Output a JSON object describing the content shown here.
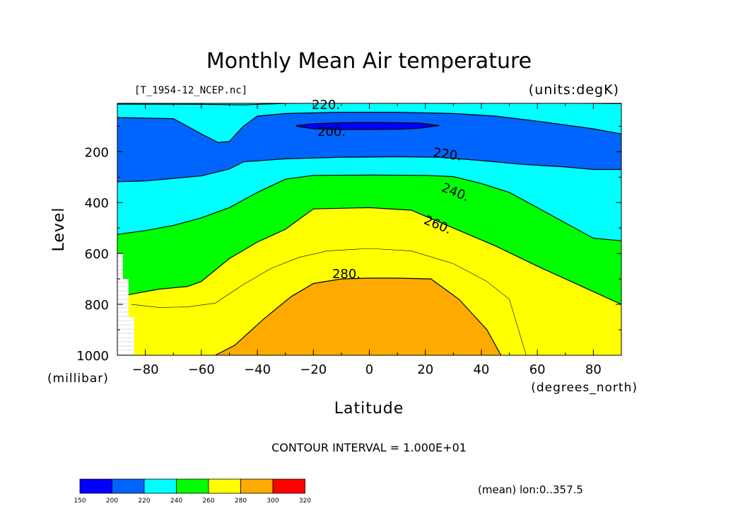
{
  "chart_data": {
    "type": "contour",
    "title": "Monthly Mean Air temperature",
    "file_label": "[T_1954-12_NCEP.nc]",
    "units_label": "(units:degK)",
    "xlabel": "Latitude",
    "x_units": "(degrees_north)",
    "ylabel": "Level",
    "y_units": "(millibar)",
    "contour_interval_label": "CONTOUR INTERVAL = 1.000E+01",
    "averaging_note": "(mean) lon:0..357.5",
    "xlim": [
      -90,
      90
    ],
    "ylim": [
      1000,
      10
    ],
    "x_ticks": [
      -80,
      -60,
      -40,
      -20,
      0,
      20,
      40,
      60,
      80
    ],
    "x_tick_labels": [
      "−80",
      "−60",
      "−40",
      "−20",
      "0",
      "20",
      "40",
      "60",
      "80"
    ],
    "y_ticks": [
      200,
      400,
      600,
      800,
      1000
    ],
    "y_tick_labels": [
      "200",
      "400",
      "600",
      "800",
      "1000"
    ],
    "contour_labels": [
      "220.",
      "200.",
      "220.",
      "240.",
      "260.",
      "280."
    ],
    "colorbar": {
      "levels": [
        150,
        200,
        220,
        240,
        260,
        280,
        300,
        320
      ],
      "level_labels": [
        "150",
        "200",
        "220",
        "240",
        "260",
        "280",
        "300",
        "320"
      ],
      "colors": [
        "#0000ff",
        "#0064ff",
        "#00ffff",
        "#00ff00",
        "#ffff00",
        "#ffaa00",
        "#ff0000"
      ]
    },
    "boundaries": [
      {
        "value": 200,
        "side": "closed",
        "points": [
          [
            -26,
            97
          ],
          [
            -20,
            90
          ],
          [
            -10,
            86
          ],
          [
            0,
            85
          ],
          [
            10,
            86
          ],
          [
            18,
            88
          ],
          [
            25,
            97
          ],
          [
            18,
            108
          ],
          [
            10,
            112
          ],
          [
            0,
            113
          ],
          [
            -10,
            113
          ],
          [
            -20,
            110
          ],
          [
            -26,
            100
          ]
        ]
      },
      {
        "value": 220,
        "side": "above",
        "points": [
          [
            -90,
            13
          ],
          [
            -60,
            14
          ],
          [
            -45,
            16
          ],
          [
            -30,
            10
          ],
          [
            -10,
            9
          ],
          [
            10,
            9
          ],
          [
            30,
            10
          ],
          [
            40,
            9
          ],
          [
            60,
            9
          ],
          [
            80,
            10
          ],
          [
            90,
            11
          ]
        ]
      },
      {
        "value": 220,
        "side": "above",
        "points": [
          [
            -90,
            66
          ],
          [
            -70,
            70
          ],
          [
            -65,
            100
          ],
          [
            -60,
            130
          ],
          [
            -54,
            164
          ],
          [
            -50,
            160
          ],
          [
            -45,
            100
          ],
          [
            -40,
            60
          ],
          [
            -30,
            50
          ],
          [
            -10,
            45
          ],
          [
            10,
            45
          ],
          [
            30,
            50
          ],
          [
            45,
            60
          ],
          [
            60,
            80
          ],
          [
            80,
            110
          ],
          [
            90,
            130
          ]
        ]
      },
      {
        "value": 220,
        "side": "below",
        "points": [
          [
            -90,
            318
          ],
          [
            -80,
            315
          ],
          [
            -70,
            305
          ],
          [
            -60,
            295
          ],
          [
            -50,
            268
          ],
          [
            -45,
            240
          ],
          [
            -30,
            228
          ],
          [
            -10,
            222
          ],
          [
            10,
            220
          ],
          [
            25,
            222
          ],
          [
            40,
            235
          ],
          [
            55,
            250
          ],
          [
            70,
            260
          ],
          [
            80,
            270
          ],
          [
            90,
            270
          ]
        ]
      },
      {
        "value": 240,
        "side": "below",
        "points": [
          [
            -90,
            525
          ],
          [
            -80,
            510
          ],
          [
            -70,
            490
          ],
          [
            -60,
            460
          ],
          [
            -50,
            420
          ],
          [
            -40,
            360
          ],
          [
            -30,
            308
          ],
          [
            -20,
            293
          ],
          [
            0,
            292
          ],
          [
            20,
            293
          ],
          [
            30,
            298
          ],
          [
            40,
            325
          ],
          [
            50,
            360
          ],
          [
            60,
            420
          ],
          [
            70,
            480
          ],
          [
            80,
            540
          ],
          [
            90,
            550
          ]
        ]
      },
      {
        "value": 260,
        "side": "below",
        "points": [
          [
            -90,
            768
          ],
          [
            -85,
            760
          ],
          [
            -75,
            740
          ],
          [
            -65,
            730
          ],
          [
            -60,
            710
          ],
          [
            -55,
            665
          ],
          [
            -50,
            620
          ],
          [
            -40,
            555
          ],
          [
            -30,
            505
          ],
          [
            -20,
            425
          ],
          [
            0,
            420
          ],
          [
            15,
            430
          ],
          [
            30,
            500
          ],
          [
            45,
            570
          ],
          [
            60,
            650
          ],
          [
            70,
            700
          ],
          [
            80,
            750
          ],
          [
            90,
            800
          ]
        ]
      },
      {
        "value": 270,
        "side": "below",
        "points": [
          [
            -85,
            800
          ],
          [
            -75,
            812
          ],
          [
            -65,
            810
          ],
          [
            -55,
            795
          ],
          [
            -45,
            722
          ],
          [
            -35,
            658
          ],
          [
            -25,
            615
          ],
          [
            -15,
            590
          ],
          [
            0,
            580
          ],
          [
            15,
            590
          ],
          [
            30,
            640
          ],
          [
            42,
            710
          ],
          [
            50,
            780
          ],
          [
            56,
            1000
          ]
        ]
      },
      {
        "value": 280,
        "side": "below",
        "points": [
          [
            -55,
            1000
          ],
          [
            -48,
            960
          ],
          [
            -38,
            860
          ],
          [
            -28,
            770
          ],
          [
            -20,
            718
          ],
          [
            -10,
            700
          ],
          [
            0,
            697
          ],
          [
            10,
            697
          ],
          [
            22,
            700
          ],
          [
            32,
            780
          ],
          [
            42,
            900
          ],
          [
            47,
            1000
          ]
        ]
      }
    ]
  }
}
